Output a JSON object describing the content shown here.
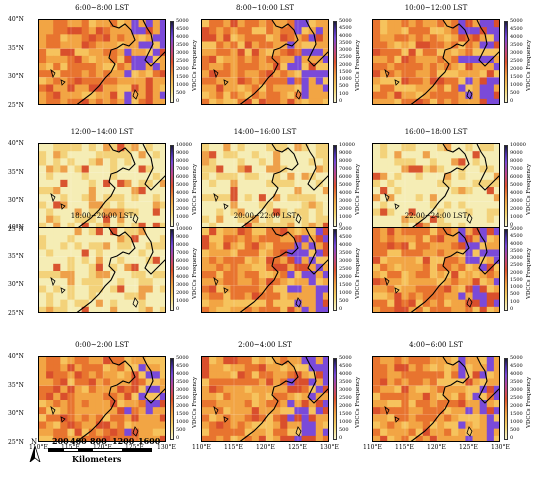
{
  "panels": [
    {
      "title": "6:00~8:00 LST",
      "scale": "5000",
      "tone": "hot"
    },
    {
      "title": "8:00~10:00 LST",
      "scale": "5000",
      "tone": "hot"
    },
    {
      "title": "10:00~12:00 LST",
      "scale": "5000",
      "tone": "hot"
    },
    {
      "title": "12:00~14:00 LST",
      "scale": "10000",
      "tone": "pale"
    },
    {
      "title": "14:00~16:00 LST",
      "scale": "10000",
      "tone": "pale"
    },
    {
      "title": "16:00~18:00 LST",
      "scale": "10000",
      "tone": "pale"
    },
    {
      "title": "18:00~20:00 LST",
      "scale": "10000",
      "tone": "pale"
    },
    {
      "title": "20:00~22:00 LST",
      "scale": "5000",
      "tone": "hot"
    },
    {
      "title": "22:00~24:00 LST",
      "scale": "5000",
      "tone": "hot"
    },
    {
      "title": "0:00~2:00 LST",
      "scale": "5000",
      "tone": "hot"
    },
    {
      "title": "2:00~4:00 LST",
      "scale": "5000",
      "tone": "hot"
    },
    {
      "title": "4:00~6:00 LST",
      "scale": "5000",
      "tone": "hot"
    }
  ],
  "colorbar_title": "VDCCs Frequency",
  "colorbar_ticks_5000": [
    "5000",
    "4500",
    "4000",
    "3500",
    "3000",
    "2500",
    "2000",
    "1500",
    "1000",
    "500",
    "0"
  ],
  "colorbar_ticks_10000": [
    "10000",
    "9000",
    "8000",
    "7000",
    "6000",
    "5000",
    "4000",
    "3000",
    "2000",
    "1000",
    "0"
  ],
  "colorbar_ticks_5000_dense": [
    "5000",
    "4500",
    "4000",
    "3500",
    "3000",
    "2500",
    "2000",
    "1500",
    "1000",
    "500",
    "100",
    "0"
  ],
  "latitude_labels": [
    "40°N",
    "35°N",
    "30°N",
    "25°N"
  ],
  "longitude_labels": [
    "110°E",
    "115°E",
    "120°E",
    "125°E",
    "130°E"
  ],
  "scale_bar": {
    "north": "N",
    "ticks": [
      "0",
      "200",
      "400",
      "800",
      "1200",
      "1600"
    ],
    "unit": "Kilometers"
  },
  "colors": {
    "low": "#f7f3c6",
    "mid": "#f6b84a",
    "high": "#e2532d",
    "peak": "#6b3fd6",
    "land_border": "#000000"
  }
}
